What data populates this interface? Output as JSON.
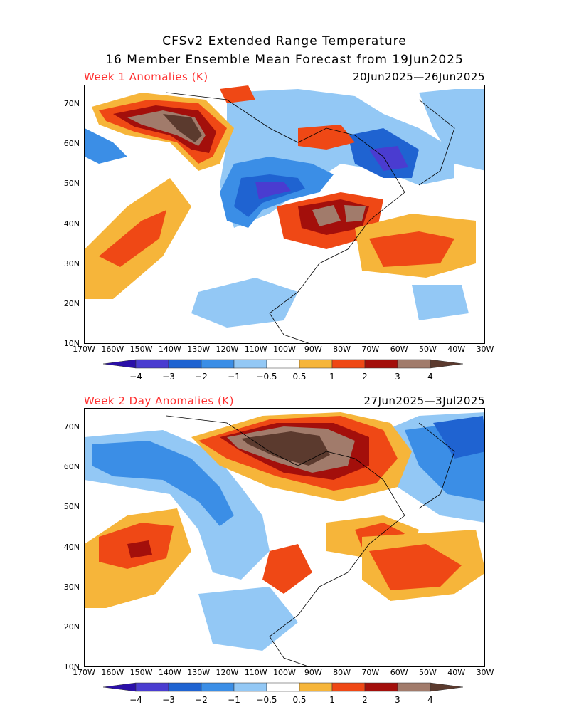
{
  "header": {
    "line1": "CFSv2 Extended Range Temperature",
    "line2": "16 Member Ensemble Mean Forecast from 19Jun2025"
  },
  "panels": [
    {
      "title": "Week 1 Anomalies (K)",
      "dates": "20Jun2025—26Jun2025"
    },
    {
      "title": "Week 2 Day Anomalies (K)",
      "dates": "27Jun2025—3Jul2025"
    }
  ],
  "axes": {
    "lat_labels": [
      "70N",
      "60N",
      "50N",
      "40N",
      "30N",
      "20N",
      "10N"
    ],
    "lon_labels": [
      "170W",
      "160W",
      "150W",
      "140W",
      "130W",
      "120W",
      "110W",
      "100W",
      "90W",
      "80W",
      "70W",
      "60W",
      "50W",
      "40W",
      "30W"
    ]
  },
  "colorbar": {
    "labels": [
      "−4",
      "−3",
      "−2",
      "−1",
      "−0.5",
      "0.5",
      "1",
      "2",
      "3",
      "4"
    ],
    "colors": [
      "#2a0fa8",
      "#4a3cd0",
      "#1f63d1",
      "#3b8ee6",
      "#93c8f5",
      "#ffffff",
      "#f6b53a",
      "#ef4815",
      "#a30f0b",
      "#a17b6b",
      "#5b3a2e"
    ]
  }
}
